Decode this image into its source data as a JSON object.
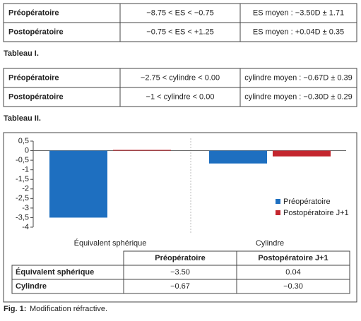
{
  "table1": {
    "rows": [
      [
        "Préopératoire",
        "−8.75 < ES < −0.75",
        "ES moyen : −3.50D ± 1.71"
      ],
      [
        "Postopératoire",
        "−0.75 < ES < +1.25",
        "ES moyen : +0.04D ± 0.35"
      ]
    ],
    "caption": "Tableau I."
  },
  "table2": {
    "rows": [
      [
        "Préopératoire",
        "−2.75 < cylindre < 0.00",
        "cylindre moyen : −0.67D ± 0.39"
      ],
      [
        "Postopératoire",
        "−1 < cylindre < 0.00",
        "cylindre moyen : −0.30D ± 0.29"
      ]
    ],
    "caption": "Tableau II."
  },
  "chart_data": {
    "type": "bar",
    "categories": [
      "Équivalent sphérique",
      "Cylindre"
    ],
    "series": [
      {
        "name": "Préopératoire",
        "color": "#1e6fc0",
        "values": [
          -3.5,
          -0.67
        ]
      },
      {
        "name": "Postopératoire J+1",
        "color": "#c4262e",
        "values": [
          0.04,
          -0.3
        ]
      }
    ],
    "ylim": [
      -4,
      0.5
    ],
    "yticks": [
      {
        "value": 0.5,
        "label": "0,5"
      },
      0,
      {
        "value": -0.5,
        "label": "-0,5"
      },
      -1,
      {
        "value": -1.5,
        "label": "-1,5"
      },
      -2,
      {
        "value": -2.5,
        "label": "-2,5"
      },
      -3,
      {
        "value": -3.5,
        "label": "-3,5"
      },
      -4
    ],
    "legend": "right",
    "data_table": {
      "header": [
        "Préopératoire",
        "Postopératoire J+1"
      ],
      "rows": [
        {
          "label": "Équivalent sphérique",
          "values": [
            "−3.50",
            "0.04"
          ]
        },
        {
          "label": "Cylindre",
          "values": [
            "−0.67",
            "−0.30"
          ]
        }
      ]
    }
  },
  "figure_caption": {
    "label": "Fig. 1:",
    "text": "Modification réfractive."
  }
}
